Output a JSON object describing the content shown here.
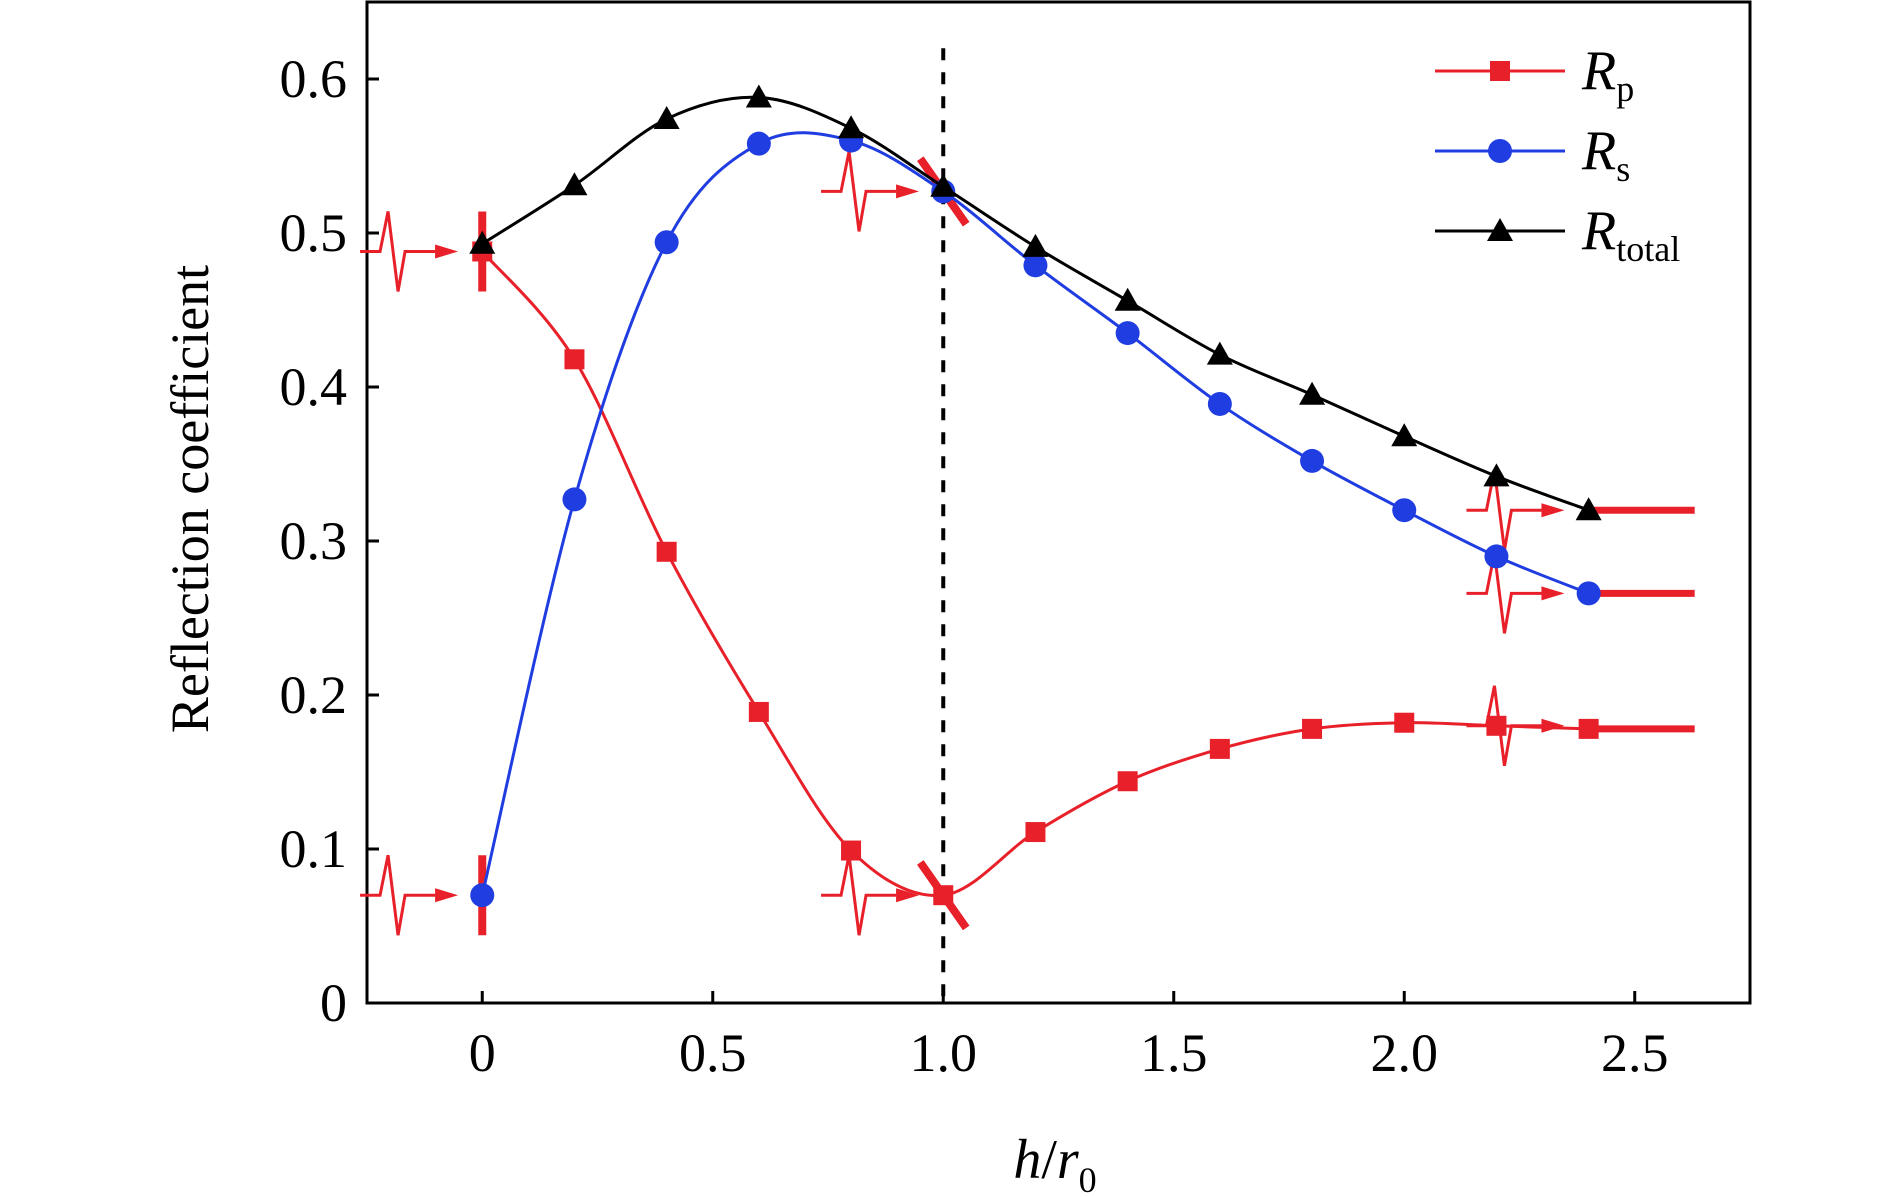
{
  "chart_data": {
    "type": "line",
    "xlabel": {
      "base": "h",
      "slash": "/",
      "var": "r",
      "sub": "0"
    },
    "ylabel": "Reflection coefficient",
    "xlim": [
      -0.25,
      2.75
    ],
    "ylim": [
      0,
      0.65
    ],
    "xticks": [
      0,
      0.5,
      1.0,
      1.5,
      2.0,
      2.5
    ],
    "xtick_labels": [
      "0",
      "0.5",
      "1.0",
      "1.5",
      "2.0",
      "2.5"
    ],
    "yticks": [
      0,
      0.1,
      0.2,
      0.3,
      0.4,
      0.5,
      0.6
    ],
    "ytick_labels": [
      "0",
      "0.1",
      "0.2",
      "0.3",
      "0.4",
      "0.5",
      "0.6"
    ],
    "grid": false,
    "legend_position": "top-right",
    "reference_line_x": 1.0,
    "x": [
      0,
      0.2,
      0.4,
      0.6,
      0.8,
      1.0,
      1.2,
      1.4,
      1.6,
      1.8,
      2.0,
      2.2,
      2.4
    ],
    "series": [
      {
        "name": "R",
        "name_sub": "p",
        "color": "#e8202a",
        "marker": "square",
        "values": [
          0.488,
          0.418,
          0.293,
          0.189,
          0.099,
          0.07,
          0.111,
          0.144,
          0.165,
          0.178,
          0.182,
          0.18,
          0.178
        ]
      },
      {
        "name": "R",
        "name_sub": "s",
        "color": "#1f3de0",
        "marker": "circle",
        "values": [
          0.07,
          0.327,
          0.494,
          0.558,
          0.56,
          0.527,
          0.479,
          0.435,
          0.389,
          0.352,
          0.32,
          0.29,
          0.266
        ]
      },
      {
        "name": "R",
        "name_sub": "total",
        "color": "#000000",
        "marker": "triangle",
        "values": [
          0.493,
          0.531,
          0.574,
          0.588,
          0.568,
          0.53,
          0.491,
          0.456,
          0.421,
          0.395,
          0.368,
          0.342,
          0.32
        ]
      }
    ],
    "annotations": {
      "color": "#e8202a",
      "incident_wave_symbols": [
        {
          "x": -0.2,
          "y": 0.488
        },
        {
          "x": -0.2,
          "y": 0.07
        },
        {
          "x": 0.8,
          "y": 0.527
        },
        {
          "x": 0.8,
          "y": 0.07
        },
        {
          "x": 2.2,
          "y": 0.32
        },
        {
          "x": 2.2,
          "y": 0.266
        },
        {
          "x": 2.2,
          "y": 0.18
        }
      ],
      "boundary_marks": [
        {
          "x": 0,
          "y": 0.488,
          "angle": 0
        },
        {
          "x": 0,
          "y": 0.07,
          "angle": 0
        },
        {
          "x": 1.0,
          "y": 0.527,
          "angle": -35
        },
        {
          "x": 1.0,
          "y": 0.07,
          "angle": -35
        }
      ],
      "horizontal_ends": [
        {
          "x0": 2.4,
          "x1": 2.63,
          "y": 0.32
        },
        {
          "x0": 2.4,
          "x1": 2.63,
          "y": 0.266
        },
        {
          "x0": 2.4,
          "x1": 2.63,
          "y": 0.178
        }
      ]
    }
  }
}
